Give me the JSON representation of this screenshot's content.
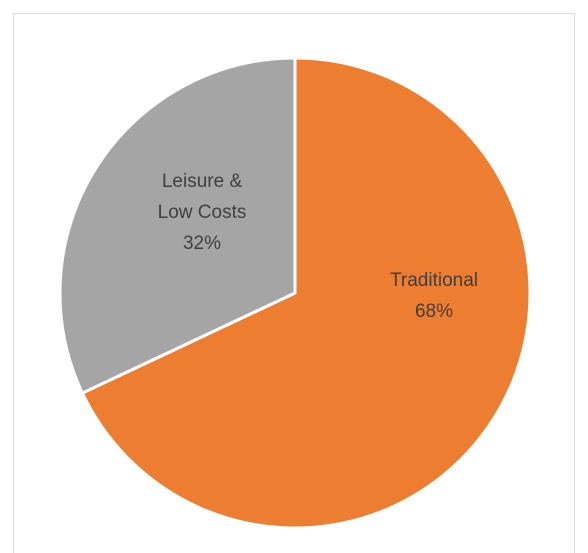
{
  "chart_data": {
    "type": "pie",
    "categories": [
      "Traditional",
      "Leisure & Low Costs"
    ],
    "values": [
      68,
      32
    ],
    "labels": [
      [
        "Traditional",
        "68%"
      ],
      [
        "Leisure &",
        "Low Costs",
        "32%"
      ]
    ],
    "colors": [
      "#ed7d31",
      "#a5a5a5"
    ],
    "label_color": "#404040",
    "start_angle_deg": 0,
    "direction": "clockwise"
  }
}
